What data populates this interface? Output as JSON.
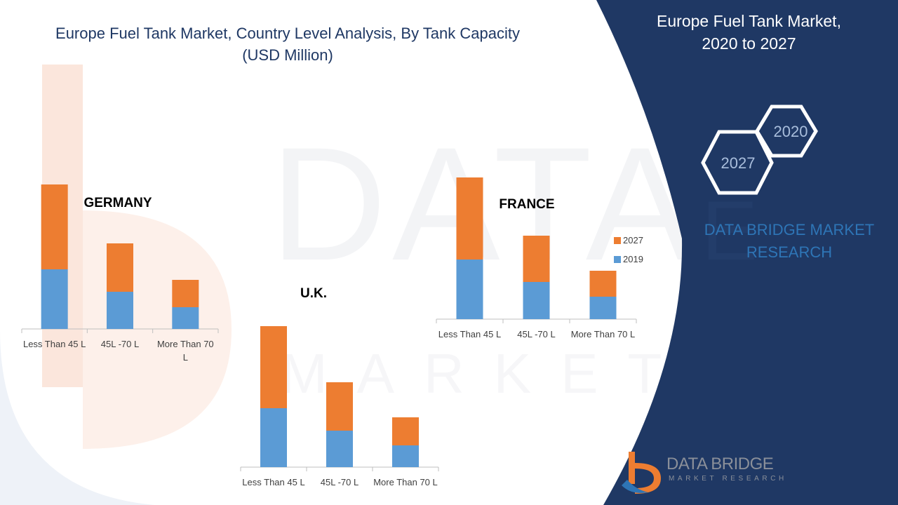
{
  "title": {
    "line1": "Europe Fuel Tank Market, Country Level Analysis, By Tank Capacity",
    "line2": "(USD Million)"
  },
  "panel": {
    "title_line1": "Europe Fuel Tank Market,",
    "title_line2": "2020 to 2027",
    "hex_2020": "2020",
    "hex_2027": "2027",
    "brand_line1": "DATA BRIDGE MARKET",
    "brand_line2": "RESEARCH"
  },
  "logo": {
    "name": "DATA BRIDGE",
    "subtitle": "MARKET RESEARCH"
  },
  "colors": {
    "series_2019": "#5b9bd5",
    "series_2027": "#ed7d31",
    "panel": "#1f3864",
    "title": "#1f3864",
    "brand": "#2e75b6"
  },
  "chart_data": [
    {
      "type": "bar",
      "stacked": true,
      "title": "GERMANY",
      "categories": [
        "Less Than 45 L",
        "45L -70 L",
        "More Than 70 L"
      ],
      "series": [
        {
          "name": "2019",
          "values": [
            85,
            53,
            31
          ]
        },
        {
          "name": "2027",
          "values": [
            121,
            69,
            39
          ]
        }
      ]
    },
    {
      "type": "bar",
      "stacked": true,
      "title": "U.K.",
      "categories": [
        "Less Than 45 L",
        "45L -70 L",
        "More Than 70 L"
      ],
      "series": [
        {
          "name": "2019",
          "values": [
            84,
            52,
            31
          ]
        },
        {
          "name": "2027",
          "values": [
            117,
            69,
            40
          ]
        }
      ]
    },
    {
      "type": "bar",
      "stacked": true,
      "title": "FRANCE",
      "categories": [
        "Less Than 45 L",
        "45L -70 L",
        "More Than 70 L"
      ],
      "series": [
        {
          "name": "2019",
          "values": [
            85,
            53,
            32
          ]
        },
        {
          "name": "2027",
          "values": [
            117,
            66,
            37
          ]
        }
      ],
      "legend": "right"
    }
  ]
}
